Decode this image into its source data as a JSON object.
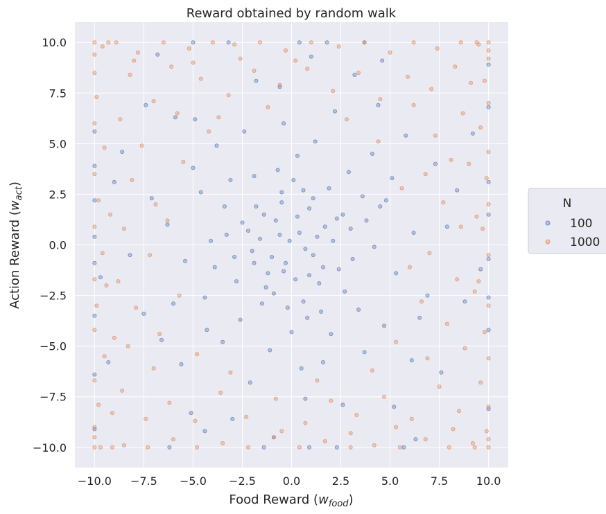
{
  "chart_data": {
    "type": "scatter",
    "title": "Reward obtained by random walk",
    "xlabel_main": "Food Reward (",
    "xlabel_var": "w",
    "xlabel_sub": "food",
    "xlabel_close": ")",
    "ylabel_main": "Action Reward (",
    "ylabel_var": "w",
    "ylabel_sub": "act",
    "ylabel_close": ")",
    "xlim": [
      -11,
      11
    ],
    "ylim": [
      -11,
      11
    ],
    "xticks": [
      -10,
      -7.5,
      -5,
      -2.5,
      0,
      2.5,
      5,
      7.5,
      10
    ],
    "yticks": [
      -10,
      -7.5,
      -5,
      -2.5,
      0,
      2.5,
      5,
      7.5,
      10
    ],
    "xtick_labels": [
      "−10.0",
      "−7.5",
      "−5.0",
      "−2.5",
      "0.0",
      "2.5",
      "5.0",
      "7.5",
      "10.0"
    ],
    "ytick_labels": [
      "−10.0",
      "−7.5",
      "−5.0",
      "−2.5",
      "0.0",
      "2.5",
      "5.0",
      "7.5",
      "10.0"
    ],
    "grid": true,
    "legend": {
      "title": "N",
      "placement": "outside-right"
    },
    "series": [
      {
        "name": "100",
        "color": "#4c72b0",
        "points": [
          [
            0.4,
            0.6
          ],
          [
            -0.8,
            1.2
          ],
          [
            1.1,
            -0.5
          ],
          [
            -0.3,
            -0.9
          ],
          [
            0.9,
            1.8
          ],
          [
            -1.6,
            0.3
          ],
          [
            1.7,
            0.9
          ],
          [
            -0.5,
            2.1
          ],
          [
            0.2,
            -1.7
          ],
          [
            -1.2,
            -1.4
          ],
          [
            2.1,
            0.2
          ],
          [
            -2.0,
            -0.3
          ],
          [
            0.6,
            2.7
          ],
          [
            -0.9,
            -2.4
          ],
          [
            1.4,
            -1.9
          ],
          [
            -1.8,
            1.9
          ],
          [
            2.6,
            1.5
          ],
          [
            -2.5,
            1.1
          ],
          [
            0.1,
            3.2
          ],
          [
            -0.2,
            -3.1
          ],
          [
            3.1,
            -0.7
          ],
          [
            -3.3,
            0.5
          ],
          [
            1.9,
            2.8
          ],
          [
            -1.5,
            -2.9
          ],
          [
            2.7,
            -2.3
          ],
          [
            -2.8,
            -1.8
          ],
          [
            0.8,
            -3.6
          ],
          [
            -0.7,
            3.7
          ],
          [
            3.8,
            1.2
          ],
          [
            -3.9,
            -1.1
          ],
          [
            4.2,
            -0.1
          ],
          [
            -4.1,
            0.2
          ],
          [
            0.3,
            4.4
          ],
          [
            0.0,
            -4.3
          ],
          [
            2.9,
            3.6
          ],
          [
            -3.1,
            3.2
          ],
          [
            3.4,
            -3.2
          ],
          [
            -2.6,
            -3.7
          ],
          [
            4.8,
            2.2
          ],
          [
            -4.6,
            2.6
          ],
          [
            1.2,
            5.1
          ],
          [
            -1.1,
            -5.2
          ],
          [
            5.3,
            -1.4
          ],
          [
            -5.4,
            -0.8
          ],
          [
            0.5,
            -6.1
          ],
          [
            -0.4,
            6.0
          ],
          [
            6.2,
            0.6
          ],
          [
            -6.3,
            1.0
          ],
          [
            4.1,
            4.5
          ],
          [
            -4.3,
            -4.2
          ],
          [
            4.7,
            -4.0
          ],
          [
            -3.8,
            4.9
          ],
          [
            2.2,
            6.6
          ],
          [
            -2.1,
            -6.8
          ],
          [
            6.9,
            -2.5
          ],
          [
            -7.1,
            2.3
          ],
          [
            0.7,
            -7.6
          ],
          [
            -0.6,
            7.8
          ],
          [
            7.9,
            0.9
          ],
          [
            -8.2,
            -0.5
          ],
          [
            5.8,
            5.4
          ],
          [
            -5.6,
            -5.9
          ],
          [
            6.1,
            -5.7
          ],
          [
            -5.9,
            6.3
          ],
          [
            3.2,
            8.4
          ],
          [
            -3.0,
            -8.6
          ],
          [
            8.8,
            -2.8
          ],
          [
            -9.0,
            3.1
          ],
          [
            1.0,
            9.3
          ],
          [
            -0.9,
            -9.5
          ],
          [
            9.6,
            -1.2
          ],
          [
            -9.7,
            -1.6
          ],
          [
            -10,
            0.4
          ],
          [
            10,
            -0.7
          ],
          [
            -10,
            2.2
          ],
          [
            10,
            3.1
          ],
          [
            -10,
            -3.5
          ],
          [
            10,
            -4.2
          ],
          [
            0.9,
            -10
          ],
          [
            -1.4,
            -10
          ],
          [
            2.3,
            -10
          ],
          [
            -3.2,
            10
          ],
          [
            0.4,
            10
          ],
          [
            1.8,
            10
          ],
          [
            -10,
            5.6
          ],
          [
            10,
            6.8
          ],
          [
            -10,
            -6.4
          ],
          [
            10,
            -8.1
          ],
          [
            -0.1,
            0.2
          ],
          [
            0.7,
            -0.2
          ],
          [
            -0.6,
            0.5
          ],
          [
            1.3,
            0.4
          ],
          [
            -1.0,
            -0.6
          ],
          [
            0.3,
            1.4
          ],
          [
            -0.4,
            -1.3
          ],
          [
            1.6,
            -1.1
          ],
          [
            -1.4,
            1.5
          ],
          [
            0.9,
            -1.5
          ],
          [
            -1.9,
            -0.9
          ],
          [
            2.3,
            1.3
          ],
          [
            -2.2,
            0.7
          ],
          [
            1.1,
            2.3
          ],
          [
            -1.3,
            -2.1
          ],
          [
            2.4,
            -1.2
          ],
          [
            -0.5,
            2.6
          ],
          [
            0.6,
            -2.8
          ],
          [
            3.0,
            0.8
          ],
          [
            -2.9,
            -0.6
          ],
          [
            -3.4,
            1.9
          ],
          [
            3.6,
            2.4
          ],
          [
            1.5,
            -3.3
          ],
          [
            -1.9,
            3.4
          ],
          [
            2.0,
            -4.4
          ],
          [
            -4.4,
            -2.6
          ],
          [
            4.5,
            1.9
          ],
          [
            -3.5,
            -4.8
          ],
          [
            5.1,
            3.3
          ],
          [
            -5.0,
            3.8
          ],
          [
            3.7,
            -5.3
          ],
          [
            -2.4,
            5.6
          ],
          [
            1.6,
            -5.8
          ],
          [
            -6.0,
            -2.9
          ],
          [
            6.5,
            -3.6
          ],
          [
            -4.9,
            6.2
          ],
          [
            4.4,
            6.9
          ],
          [
            -6.6,
            -4.7
          ],
          [
            7.3,
            4.0
          ],
          [
            -7.5,
            -3.4
          ],
          [
            2.6,
            -7.9
          ],
          [
            -1.8,
            8.1
          ],
          [
            8.4,
            2.7
          ],
          [
            -8.6,
            4.6
          ],
          [
            5.2,
            -8.0
          ],
          [
            -5.1,
            -8.3
          ],
          [
            7.6,
            -6.3
          ],
          [
            -7.4,
            6.9
          ],
          [
            9.2,
            5.5
          ],
          [
            -9.3,
            -5.8
          ],
          [
            4.6,
            9.1
          ],
          [
            -4.4,
            -9.2
          ],
          [
            6.3,
            -9.6
          ],
          [
            -6.8,
            9.4
          ],
          [
            10,
            1.5
          ],
          [
            -10,
            -0.9
          ],
          [
            10,
            -2.6
          ],
          [
            -10,
            3.9
          ],
          [
            3.7,
            10
          ],
          [
            -5.0,
            10
          ],
          [
            5.7,
            -10
          ],
          [
            -6.2,
            -10
          ],
          [
            10,
            8.9
          ],
          [
            -10,
            -9.1
          ]
        ]
      },
      {
        "name": "1000",
        "color": "#dd8452",
        "points": [
          [
            -10,
            10
          ],
          [
            -9.6,
            9.8
          ],
          [
            -8.9,
            10
          ],
          [
            -7.8,
            9.5
          ],
          [
            -6.5,
            10
          ],
          [
            -5.2,
            9.7
          ],
          [
            -4.0,
            10
          ],
          [
            -2.9,
            9.9
          ],
          [
            -1.6,
            10
          ],
          [
            -0.3,
            9.6
          ],
          [
            1.0,
            10
          ],
          [
            2.4,
            9.8
          ],
          [
            3.7,
            10
          ],
          [
            5.0,
            9.5
          ],
          [
            6.2,
            10
          ],
          [
            7.4,
            9.7
          ],
          [
            8.6,
            10
          ],
          [
            9.5,
            9.9
          ],
          [
            10,
            10
          ],
          [
            10,
            9.2
          ],
          [
            9.8,
            8.1
          ],
          [
            10,
            7.0
          ],
          [
            9.6,
            5.8
          ],
          [
            10,
            4.6
          ],
          [
            9.9,
            3.3
          ],
          [
            10,
            2.0
          ],
          [
            9.7,
            0.8
          ],
          [
            10,
            -0.5
          ],
          [
            9.5,
            -1.8
          ],
          [
            10,
            -3.0
          ],
          [
            9.8,
            -4.3
          ],
          [
            10,
            -5.6
          ],
          [
            9.6,
            -6.8
          ],
          [
            10,
            -8.0
          ],
          [
            9.9,
            -9.2
          ],
          [
            10,
            -10
          ],
          [
            9.2,
            -9.8
          ],
          [
            8.0,
            -10
          ],
          [
            6.8,
            -9.6
          ],
          [
            5.5,
            -10
          ],
          [
            4.2,
            -9.9
          ],
          [
            3.0,
            -10
          ],
          [
            1.7,
            -9.7
          ],
          [
            0.4,
            -10
          ],
          [
            -0.9,
            -9.5
          ],
          [
            -2.2,
            -10
          ],
          [
            -3.5,
            -9.8
          ],
          [
            -4.8,
            -10
          ],
          [
            -6.0,
            -9.6
          ],
          [
            -7.3,
            -10
          ],
          [
            -8.5,
            -9.9
          ],
          [
            -9.7,
            -10
          ],
          [
            -10,
            -10
          ],
          [
            -10,
            -9.0
          ],
          [
            -9.8,
            -7.9
          ],
          [
            -10,
            -6.7
          ],
          [
            -9.5,
            -5.5
          ],
          [
            -10,
            -4.2
          ],
          [
            -9.9,
            -3.0
          ],
          [
            -10,
            -1.7
          ],
          [
            -9.6,
            -0.4
          ],
          [
            -10,
            0.9
          ],
          [
            -9.8,
            2.2
          ],
          [
            -10,
            3.5
          ],
          [
            -9.5,
            4.8
          ],
          [
            -10,
            6.0
          ],
          [
            -9.9,
            7.3
          ],
          [
            -10,
            8.5
          ],
          [
            -8.2,
            8.4
          ],
          [
            -7.0,
            7.1
          ],
          [
            -6.1,
            8.8
          ],
          [
            -8.7,
            6.2
          ],
          [
            -7.6,
            4.9
          ],
          [
            -5.8,
            6.5
          ],
          [
            -4.6,
            8.2
          ],
          [
            -3.2,
            7.4
          ],
          [
            -1.9,
            8.6
          ],
          [
            -0.6,
            7.9
          ],
          [
            0.8,
            8.7
          ],
          [
            2.1,
            7.6
          ],
          [
            3.4,
            8.5
          ],
          [
            4.5,
            7.2
          ],
          [
            5.9,
            8.3
          ],
          [
            7.1,
            7.7
          ],
          [
            8.3,
            8.8
          ],
          [
            8.7,
            6.5
          ],
          [
            7.3,
            5.4
          ],
          [
            6.2,
            6.9
          ],
          [
            8.1,
            4.2
          ],
          [
            6.8,
            3.5
          ],
          [
            7.7,
            2.1
          ],
          [
            8.6,
            0.9
          ],
          [
            7.0,
            -0.4
          ],
          [
            8.4,
            -1.7
          ],
          [
            6.6,
            -2.8
          ],
          [
            7.9,
            -3.9
          ],
          [
            8.8,
            -5.1
          ],
          [
            6.9,
            -5.6
          ],
          [
            7.5,
            -7.0
          ],
          [
            8.5,
            -8.2
          ],
          [
            6.1,
            -8.6
          ],
          [
            4.7,
            -7.5
          ],
          [
            3.3,
            -8.4
          ],
          [
            2.0,
            -7.7
          ],
          [
            0.7,
            -8.8
          ],
          [
            -0.8,
            -7.6
          ],
          [
            -2.3,
            -8.5
          ],
          [
            -3.6,
            -7.3
          ],
          [
            -4.9,
            -8.7
          ],
          [
            -6.2,
            -7.8
          ],
          [
            -7.4,
            -8.6
          ],
          [
            -8.6,
            -7.2
          ],
          [
            -7.0,
            -6.1
          ],
          [
            -8.3,
            -5.0
          ],
          [
            -6.7,
            -4.4
          ],
          [
            -7.9,
            -3.1
          ],
          [
            -8.8,
            -1.8
          ],
          [
            -7.2,
            -0.5
          ],
          [
            -8.5,
            0.8
          ],
          [
            -6.9,
            2.0
          ],
          [
            -8.1,
            3.2
          ],
          [
            -5.5,
            4.1
          ],
          [
            -4.2,
            5.6
          ],
          [
            -5.7,
            -2.5
          ],
          [
            -4.8,
            -5.4
          ],
          [
            -3.1,
            -6.3
          ],
          [
            4.1,
            -6.2
          ],
          [
            5.3,
            -4.8
          ],
          [
            5.6,
            2.8
          ],
          [
            4.4,
            5.1
          ],
          [
            -3.7,
            6.3
          ],
          [
            2.8,
            6.2
          ],
          [
            -6.3,
            1.2
          ],
          [
            6.0,
            -1.1
          ],
          [
            -1.2,
            6.8
          ],
          [
            1.3,
            -6.7
          ],
          [
            -10,
            9.4
          ],
          [
            -9.3,
            10
          ],
          [
            -10,
            -9.5
          ],
          [
            -9.1,
            -10
          ],
          [
            10,
            -9.6
          ],
          [
            9.3,
            -10
          ],
          [
            9.4,
            10
          ],
          [
            10,
            9.6
          ],
          [
            -8.0,
            9.1
          ],
          [
            8.2,
            -9.1
          ],
          [
            -9.1,
            -8.3
          ],
          [
            9.1,
            8.0
          ],
          [
            -2.6,
            9.2
          ],
          [
            3.0,
            -9.3
          ],
          [
            -9.2,
            1.5
          ],
          [
            9.3,
            -2.3
          ],
          [
            -5.0,
            9.0
          ],
          [
            5.3,
            -9.0
          ],
          [
            -9.0,
            -4.6
          ],
          [
            9.0,
            4.0
          ],
          [
            0.2,
            9.1
          ],
          [
            -0.5,
            -9.2
          ],
          [
            -9.4,
            -2.0
          ],
          [
            9.4,
            1.4
          ]
        ]
      }
    ]
  }
}
